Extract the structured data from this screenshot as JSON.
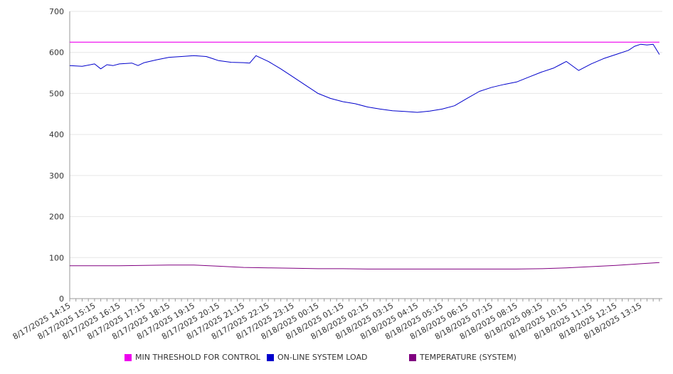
{
  "colors": {
    "threshold": "#ee00ee",
    "load": "#0000cc",
    "temperature": "#800080",
    "grid": "#e6e6e6",
    "axis": "#999999"
  },
  "legend": [
    {
      "label": "MIN THRESHOLD FOR CONTROL",
      "color": "#ee00ee"
    },
    {
      "label": "ON-LINE SYSTEM LOAD",
      "color": "#0000cc"
    },
    {
      "label": "TEMPERATURE (SYSTEM)",
      "color": "#800080"
    }
  ],
  "chart_data": {
    "type": "line",
    "title": "",
    "xlabel": "",
    "ylabel": "",
    "ylim": [
      0,
      700
    ],
    "yticks": [
      0,
      100,
      200,
      300,
      400,
      500,
      600,
      700
    ],
    "x_ticks": [
      "8/17/2025 14:15",
      "8/17/2025 15:15",
      "8/17/2025 16:15",
      "8/17/2025 17:15",
      "8/17/2025 18:15",
      "8/17/2025 19:15",
      "8/17/2025 20:15",
      "8/17/2025 21:15",
      "8/17/2025 22:15",
      "8/17/2025 23:15",
      "8/18/2025 00:15",
      "8/18/2025 01:15",
      "8/18/2025 02:15",
      "8/18/2025 03:15",
      "8/18/2025 04:15",
      "8/18/2025 05:15",
      "8/18/2025 06:15",
      "8/18/2025 07:15",
      "8/18/2025 08:15",
      "8/18/2025 09:15",
      "8/18/2025 10:15",
      "8/18/2025 11:15",
      "8/18/2025 12:15",
      "8/18/2025 13:15"
    ],
    "grid": true,
    "legend_position": "bottom",
    "series": [
      {
        "name": "MIN THRESHOLD FOR CONTROL",
        "x": [
          "8/17/2025 14:15",
          "8/18/2025 14:00"
        ],
        "values": [
          625,
          625
        ]
      },
      {
        "name": "ON-LINE SYSTEM LOAD",
        "x": [
          "8/17/2025 14:15",
          "8/17/2025 14:45",
          "8/17/2025 15:15",
          "8/17/2025 15:30",
          "8/17/2025 15:45",
          "8/17/2025 16:00",
          "8/17/2025 16:15",
          "8/17/2025 16:45",
          "8/17/2025 17:00",
          "8/17/2025 17:15",
          "8/17/2025 17:45",
          "8/17/2025 18:15",
          "8/17/2025 18:45",
          "8/17/2025 19:15",
          "8/17/2025 19:45",
          "8/17/2025 20:00",
          "8/17/2025 20:15",
          "8/17/2025 20:45",
          "8/17/2025 21:15",
          "8/17/2025 21:30",
          "8/17/2025 21:45",
          "8/17/2025 22:15",
          "8/17/2025 22:45",
          "8/17/2025 23:15",
          "8/17/2025 23:45",
          "8/18/2025 00:15",
          "8/18/2025 00:45",
          "8/18/2025 01:15",
          "8/18/2025 01:45",
          "8/18/2025 02:15",
          "8/18/2025 02:45",
          "8/18/2025 03:15",
          "8/18/2025 03:45",
          "8/18/2025 04:15",
          "8/18/2025 04:45",
          "8/18/2025 05:15",
          "8/18/2025 05:45",
          "8/18/2025 06:15",
          "8/18/2025 06:45",
          "8/18/2025 07:15",
          "8/18/2025 07:45",
          "8/18/2025 08:15",
          "8/18/2025 08:45",
          "8/18/2025 09:15",
          "8/18/2025 09:45",
          "8/18/2025 10:00",
          "8/18/2025 10:15",
          "8/18/2025 10:45",
          "8/18/2025 11:15",
          "8/18/2025 11:45",
          "8/18/2025 12:15",
          "8/18/2025 12:45",
          "8/18/2025 13:00",
          "8/18/2025 13:15",
          "8/18/2025 13:30",
          "8/18/2025 13:45",
          "8/18/2025 14:00"
        ],
        "values": [
          568,
          566,
          572,
          560,
          570,
          568,
          572,
          574,
          568,
          575,
          582,
          588,
          590,
          592,
          590,
          585,
          580,
          576,
          575,
          574,
          592,
          578,
          560,
          540,
          520,
          500,
          488,
          480,
          475,
          467,
          462,
          458,
          456,
          454,
          457,
          462,
          470,
          488,
          505,
          515,
          522,
          528,
          540,
          552,
          562,
          570,
          578,
          556,
          572,
          585,
          595,
          605,
          615,
          620,
          618,
          620,
          595
        ]
      },
      {
        "name": "TEMPERATURE (SYSTEM)",
        "x": [
          "8/17/2025 14:15",
          "8/17/2025 16:15",
          "8/17/2025 17:15",
          "8/17/2025 18:15",
          "8/17/2025 19:15",
          "8/17/2025 20:15",
          "8/17/2025 21:15",
          "8/17/2025 22:15",
          "8/17/2025 23:15",
          "8/18/2025 00:15",
          "8/18/2025 01:15",
          "8/18/2025 02:15",
          "8/18/2025 03:15",
          "8/18/2025 04:15",
          "8/18/2025 05:15",
          "8/18/2025 06:15",
          "8/18/2025 07:15",
          "8/18/2025 08:15",
          "8/18/2025 09:15",
          "8/18/2025 10:15",
          "8/18/2025 11:15",
          "8/18/2025 12:15",
          "8/18/2025 13:15",
          "8/18/2025 14:00"
        ],
        "values": [
          80,
          80,
          81,
          82,
          82,
          79,
          76,
          75,
          74,
          73,
          73,
          72,
          72,
          72,
          72,
          72,
          72,
          72,
          73,
          75,
          78,
          81,
          85,
          88
        ]
      }
    ]
  }
}
